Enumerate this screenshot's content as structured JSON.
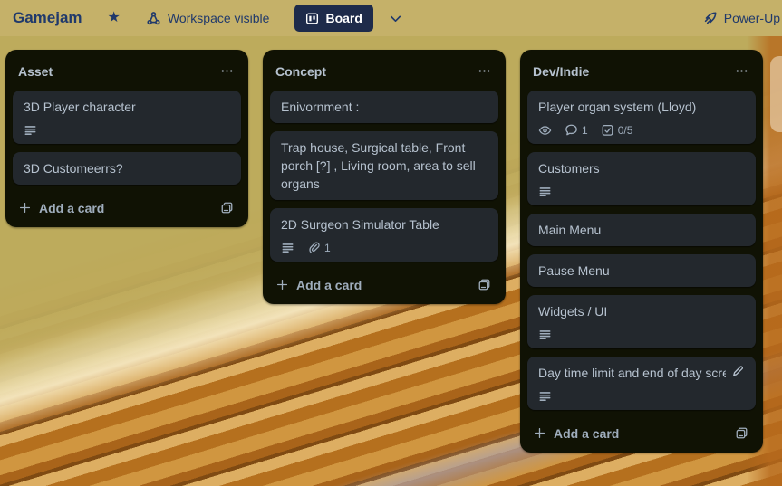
{
  "colors": {
    "topbar_bg": "#c5b169",
    "topbar_text": "#20396b",
    "board_button_bg": "#1e2b4a",
    "board_button_text": "#ffffff",
    "list_bg": "#101204",
    "card_bg": "#23282d",
    "card_text": "#b6c2cf",
    "badge_text": "#9fadbc"
  },
  "topbar": {
    "title": "Gamejam",
    "star_icon": "star-filled",
    "visibility_icon": "workspace-members",
    "visibility_label": "Workspace visible",
    "view_icon": "board-view",
    "view_label": "Board",
    "chevron_icon": "chevron-down",
    "power_up_icon": "power-up-rocket",
    "power_up_label": "Power-Up"
  },
  "board": {
    "add_card_label": "Add a card",
    "list_menu_icon": "ellipsis",
    "template_icon": "card-template",
    "lists": [
      {
        "title": "Asset",
        "cards": [
          {
            "title": "3D Player character",
            "description": true
          },
          {
            "title": "3D Customeerrs?"
          }
        ]
      },
      {
        "title": "Concept",
        "cards": [
          {
            "title": "Enivornment :"
          },
          {
            "title": "Trap house, Surgical table, Front porch [?] , Living room, area to sell organs"
          },
          {
            "title": "2D Surgeon Simulator Table",
            "description": true,
            "attachments": "1"
          }
        ]
      },
      {
        "title": "Dev/Indie",
        "cards": [
          {
            "title": "Player organ system (Lloyd)",
            "watching": true,
            "comments": "1",
            "checklist": "0/5"
          },
          {
            "title": "Customers",
            "description": true
          },
          {
            "title": "Main Menu"
          },
          {
            "title": "Pause Menu"
          },
          {
            "title": "Widgets / UI",
            "description": true
          },
          {
            "title": "Day time limit and end of day scre",
            "description": true,
            "editing": true,
            "truncated": true
          }
        ]
      }
    ]
  }
}
